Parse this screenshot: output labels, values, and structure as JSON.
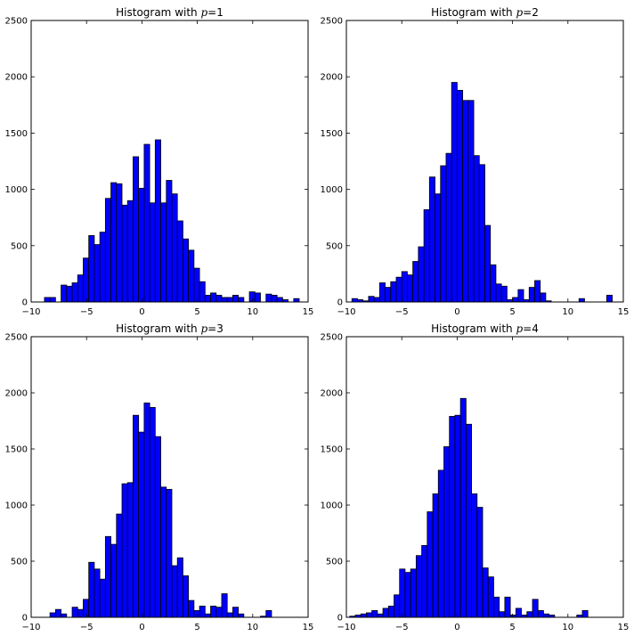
{
  "figure": {
    "bar_color": "#0000ff",
    "edge_color": "#000000",
    "background": "#ffffff"
  },
  "chart_data": [
    {
      "type": "bar",
      "title_prefix": "Histogram with ",
      "title_var": "p",
      "title_suffix": "=1",
      "xlim": [
        -10,
        15
      ],
      "ylim": [
        0,
        2500
      ],
      "xticks": [
        -10,
        -5,
        0,
        5,
        10,
        15
      ],
      "yticks": [
        0,
        500,
        1000,
        1500,
        2000,
        2500
      ],
      "bin_start": -8.8,
      "bin_width": 0.5,
      "values": [
        40,
        40,
        0,
        150,
        140,
        170,
        240,
        390,
        590,
        510,
        620,
        920,
        1060,
        1050,
        860,
        900,
        1290,
        1010,
        1400,
        880,
        1440,
        880,
        1080,
        960,
        720,
        560,
        460,
        300,
        180,
        60,
        80,
        60,
        40,
        40,
        60,
        40,
        0,
        90,
        80,
        0,
        70,
        60,
        40,
        20,
        0,
        30
      ]
    },
    {
      "type": "bar",
      "title_prefix": "Histogram with ",
      "title_var": "p",
      "title_suffix": "=2",
      "xlim": [
        -10,
        15
      ],
      "ylim": [
        0,
        2500
      ],
      "xticks": [
        -10,
        -5,
        0,
        5,
        10,
        15
      ],
      "yticks": [
        0,
        500,
        1000,
        1500,
        2000,
        2500
      ],
      "bin_start": -9.5,
      "bin_width": 0.5,
      "values": [
        30,
        20,
        10,
        50,
        40,
        170,
        130,
        180,
        220,
        270,
        240,
        360,
        490,
        820,
        1110,
        960,
        1210,
        1320,
        1950,
        1880,
        1790,
        1790,
        1300,
        1220,
        680,
        330,
        160,
        140,
        20,
        40,
        110,
        20,
        130,
        190,
        80,
        10,
        0,
        0,
        0,
        0,
        0,
        30,
        0,
        0,
        0,
        0,
        60
      ]
    },
    {
      "type": "bar",
      "title_prefix": "Histogram with ",
      "title_var": "p",
      "title_suffix": "=3",
      "xlim": [
        -10,
        15
      ],
      "ylim": [
        0,
        2500
      ],
      "xticks": [
        -10,
        -5,
        0,
        5,
        10,
        15
      ],
      "yticks": [
        0,
        500,
        1000,
        1500,
        2000,
        2500
      ],
      "bin_start": -8.3,
      "bin_width": 0.5,
      "values": [
        40,
        70,
        30,
        0,
        90,
        70,
        160,
        490,
        430,
        340,
        720,
        650,
        920,
        1190,
        1200,
        1800,
        1650,
        1910,
        1870,
        1610,
        1160,
        1140,
        460,
        530,
        370,
        150,
        60,
        100,
        30,
        100,
        90,
        210,
        40,
        90,
        30,
        0,
        0,
        0,
        10,
        60
      ]
    },
    {
      "type": "bar",
      "title_prefix": "Histogram with ",
      "title_var": "p",
      "title_suffix": "=4",
      "xlim": [
        -10,
        15
      ],
      "ylim": [
        0,
        2500
      ],
      "xticks": [
        -10,
        -5,
        0,
        5,
        10,
        15
      ],
      "yticks": [
        0,
        500,
        1000,
        1500,
        2000,
        2500
      ],
      "bin_start": -9.7,
      "bin_width": 0.5,
      "values": [
        10,
        20,
        30,
        40,
        60,
        30,
        80,
        100,
        200,
        430,
        400,
        430,
        550,
        640,
        940,
        1100,
        1310,
        1520,
        1790,
        1800,
        1950,
        1720,
        1100,
        980,
        440,
        360,
        180,
        50,
        180,
        20,
        80,
        20,
        50,
        160,
        60,
        30,
        20,
        0,
        0,
        0,
        0,
        20,
        60
      ]
    }
  ]
}
